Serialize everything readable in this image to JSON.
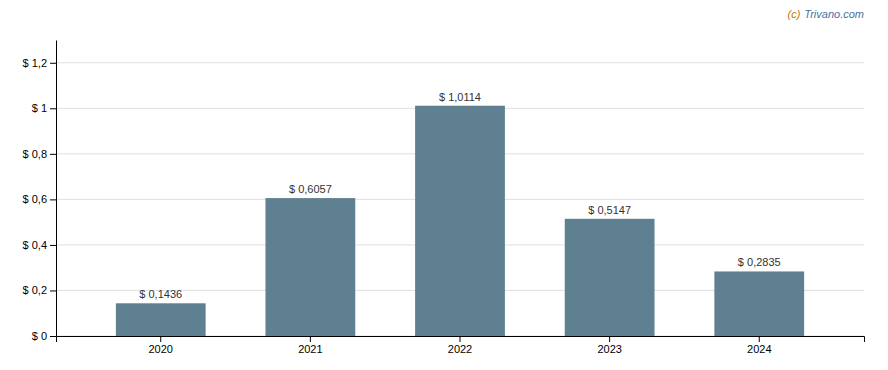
{
  "chart_data": {
    "type": "bar",
    "categories": [
      "2020",
      "2021",
      "2022",
      "2023",
      "2024"
    ],
    "values": [
      0.1436,
      0.6057,
      1.0114,
      0.5147,
      0.2835
    ],
    "value_labels": [
      "$ 0,1436",
      "$ 0,6057",
      "$ 1,0114",
      "$ 0,5147",
      "$ 0,2835"
    ],
    "data_labels": true,
    "color": "#5f8090",
    "ylim": [
      0,
      1.3
    ],
    "yticks": [
      {
        "value": 0,
        "label": "$ 0"
      },
      {
        "value": 0.2,
        "label": "$ 0,2"
      },
      {
        "value": 0.4,
        "label": "$ 0,4"
      },
      {
        "value": 0.6,
        "label": "$ 0,6"
      },
      {
        "value": 0.8,
        "label": "$ 0,8"
      },
      {
        "value": 1.0,
        "label": "$ 1"
      },
      {
        "value": 1.2,
        "label": "$ 1,2"
      }
    ],
    "grid": true,
    "annotations": [
      {
        "text": "(c)",
        "color": "#c8730a"
      },
      {
        "text": "Trivano.com",
        "color": "#4a6fa5"
      }
    ]
  }
}
